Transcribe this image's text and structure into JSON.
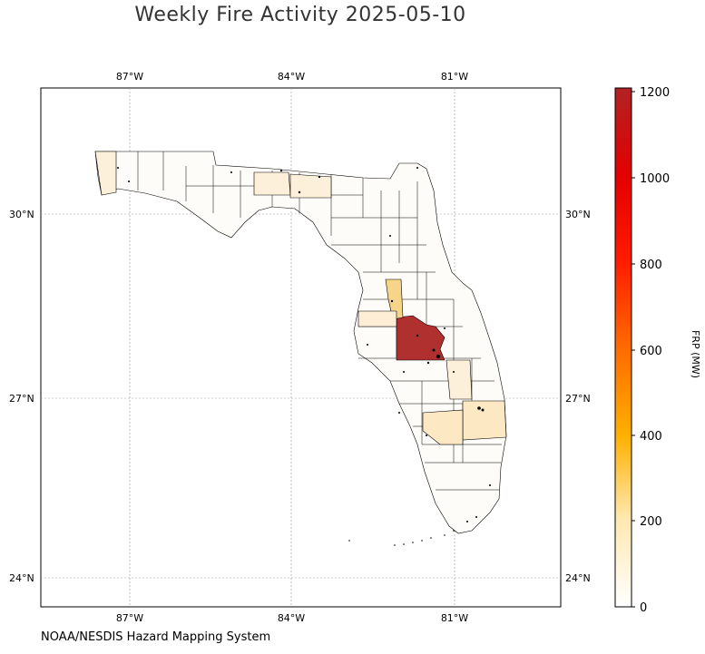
{
  "title": "Weekly Fire Activity 2025-05-10",
  "credit": "NOAA/NESDIS Hazard Mapping System",
  "colorbar": {
    "label": "FRP (MW)",
    "ticks": [
      "0",
      "200",
      "400",
      "600",
      "800",
      "1000",
      "1200"
    ],
    "min": 0,
    "max": 1200,
    "colors": [
      "#ffffff",
      "#ffe8b0",
      "#ffb000",
      "#ff6a00",
      "#ff1a00",
      "#e30000",
      "#b22222"
    ]
  },
  "axes": {
    "lon_ticks": [
      "87°W",
      "84°W",
      "81°W"
    ],
    "lat_ticks": [
      "30°N",
      "27°N",
      "24°N"
    ]
  },
  "map": {
    "region": "Florida counties",
    "highlights": [
      {
        "name": "Polk / Osceola area",
        "level": "high",
        "color": "#b03030"
      },
      {
        "name": "Citrus / Hernando area",
        "level": "medium",
        "color": "#f6d48a"
      },
      {
        "name": "Palm Beach area",
        "level": "low-medium",
        "color": "#fde8c4"
      },
      {
        "name": "Okeechobee area",
        "level": "low-medium",
        "color": "#fde8c4"
      },
      {
        "name": "Hillsborough area",
        "level": "low",
        "color": "#fdeed5"
      },
      {
        "name": "Panhandle counties",
        "level": "low",
        "color": "#fdf0da"
      }
    ]
  }
}
